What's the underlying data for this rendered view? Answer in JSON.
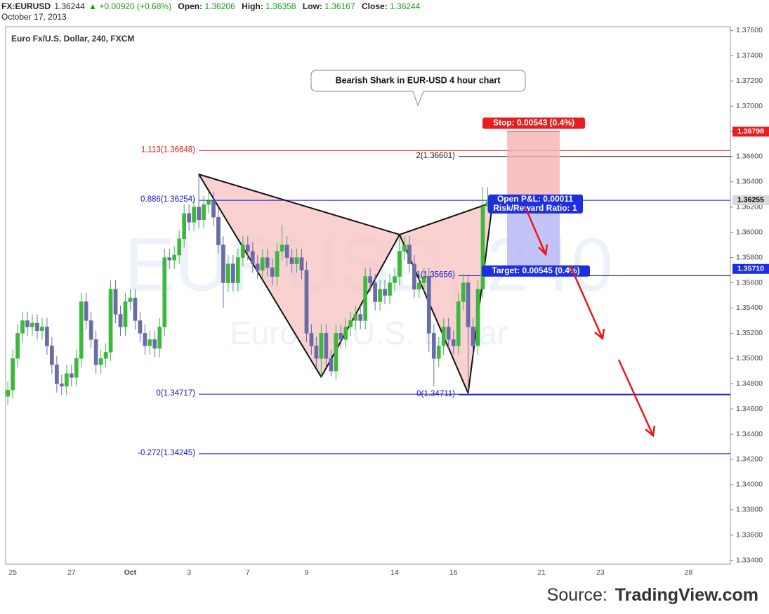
{
  "header": {
    "symbol": "FX:EURUSD",
    "last": "1.36244",
    "arrow": "▲",
    "change": "+0.00920 (+0.68%)",
    "fields": [
      {
        "label": "Open:",
        "value": "1.36206"
      },
      {
        "label": "High:",
        "value": "1.36358"
      },
      {
        "label": "Low:",
        "value": "1.36167"
      },
      {
        "label": "Close:",
        "value": "1.36244"
      }
    ],
    "date": "October 17, 2013"
  },
  "source": {
    "prefix": "Source:",
    "name": "TradingView.com"
  },
  "chart_data": {
    "type": "candlestick",
    "title": "Euro Fx/U.S. Dollar, 240, FXCM",
    "watermark": "EURUSD, 240",
    "watermark_subtitle": "Euro Fx/U.S. Dollar",
    "annotation": "Bearish Shark in EUR-USD 4 hour chart",
    "categories": [
      null,
      "25",
      null,
      null,
      null,
      null,
      null,
      null,
      null,
      null,
      null,
      null,
      null,
      "27",
      null,
      null,
      null,
      null,
      null,
      null,
      null,
      null,
      null,
      null,
      null,
      "Oct",
      null,
      null,
      null,
      null,
      null,
      null,
      null,
      null,
      null,
      null,
      null,
      "3",
      null,
      null,
      null,
      null,
      null,
      null,
      null,
      null,
      null,
      null,
      null,
      "7",
      null,
      null,
      null,
      null,
      null,
      null,
      null,
      null,
      null,
      null,
      null,
      "9",
      null,
      null,
      null,
      null,
      null,
      null,
      null,
      null,
      null,
      null,
      null,
      null,
      null,
      null,
      null,
      null,
      null,
      "14",
      null,
      null,
      null,
      null,
      null,
      null,
      null,
      null,
      null,
      null,
      null,
      "16",
      null,
      null,
      null,
      null,
      null,
      null,
      null,
      null,
      null,
      null,
      null,
      null,
      null,
      null,
      null,
      null,
      null,
      "21",
      null,
      null,
      null,
      null,
      null,
      null,
      null,
      null,
      null,
      null,
      null,
      "23",
      null,
      null,
      null,
      null,
      null,
      null,
      null,
      null,
      null,
      null,
      null,
      null,
      null,
      null,
      null,
      null,
      null,
      "28",
      null,
      null,
      null,
      null,
      null,
      null,
      null,
      null
    ],
    "open": [
      1.347,
      1.3475,
      1.35,
      1.352,
      1.353,
      1.3525,
      1.3528,
      1.3522,
      1.3525,
      1.351,
      1.3495,
      1.348,
      1.3478,
      1.3488,
      1.3485,
      1.35,
      1.3545,
      1.353,
      1.3515,
      1.3495,
      1.35,
      1.3505,
      1.3555,
      1.3535,
      1.3525,
      1.3545,
      1.3548,
      1.353,
      1.352,
      1.351,
      1.3515,
      1.3508,
      1.3525,
      1.358,
      1.3578,
      1.3582,
      1.3595,
      1.3615,
      1.3608,
      1.362,
      1.361,
      1.3622,
      1.3625,
      1.3612,
      1.359,
      1.356,
      1.3575,
      1.356,
      1.358,
      1.359,
      1.3585,
      1.3575,
      1.357,
      1.358,
      1.3572,
      1.3565,
      1.3585,
      1.359,
      1.358,
      1.3575,
      1.358,
      1.357,
      1.352,
      1.351,
      1.35,
      1.352,
      1.35,
      1.349,
      1.352,
      1.3515,
      1.3525,
      1.353,
      1.3535,
      1.353,
      1.3565,
      1.356,
      1.3545,
      1.3555,
      1.355,
      1.356,
      1.3565,
      1.3585,
      1.359,
      1.3575,
      1.3555,
      1.356,
      1.3565,
      1.352,
      1.35,
      1.351,
      1.3525,
      1.3515,
      1.351,
      1.3545,
      1.356,
      1.3525,
      1.351,
      1.3555,
      1.36206,
      null,
      null,
      null,
      null,
      null,
      null,
      null,
      null,
      null,
      null,
      null,
      null,
      null,
      null,
      null,
      null,
      null,
      null,
      null,
      null,
      null,
      null,
      null,
      null,
      null,
      null,
      null,
      null,
      null,
      null,
      null,
      null,
      null,
      null,
      null,
      null,
      null,
      null,
      null,
      null,
      null,
      null,
      null,
      null,
      null,
      null,
      null,
      null,
      null
    ],
    "high": [
      1.3482,
      1.3507,
      1.3527,
      1.3537,
      1.3537,
      1.3535,
      1.3535,
      1.3532,
      1.3532,
      1.3517,
      1.3502,
      1.3487,
      1.3495,
      1.3495,
      1.3507,
      1.3552,
      1.3552,
      1.3537,
      1.3522,
      1.3507,
      1.3512,
      1.3562,
      1.3562,
      1.3542,
      1.3552,
      1.3555,
      1.3555,
      1.3537,
      1.3527,
      1.3522,
      1.3522,
      1.3532,
      1.3587,
      1.3587,
      1.3589,
      1.3602,
      1.3622,
      1.3622,
      1.3627,
      1.3646,
      1.3629,
      1.3632,
      1.3632,
      1.3619,
      1.3597,
      1.3582,
      1.3582,
      1.3587,
      1.3597,
      1.3597,
      1.3592,
      1.3582,
      1.3587,
      1.3587,
      1.3579,
      1.3592,
      1.3606,
      1.3597,
      1.3587,
      1.3587,
      1.3587,
      1.3577,
      1.3527,
      1.3517,
      1.3527,
      1.3527,
      1.3507,
      1.3527,
      1.3527,
      1.3532,
      1.3537,
      1.3542,
      1.3542,
      1.3572,
      1.3572,
      1.3567,
      1.3562,
      1.3562,
      1.3567,
      1.3572,
      1.3597,
      1.3597,
      1.3597,
      1.3582,
      1.3567,
      1.3572,
      1.3572,
      1.3527,
      1.3517,
      1.3532,
      1.3532,
      1.3522,
      1.3552,
      1.3567,
      1.3567,
      1.3532,
      1.3562,
      1.3636,
      1.36358,
      null,
      null,
      null,
      null,
      null,
      null,
      null,
      null,
      null,
      null,
      null,
      null,
      null,
      null,
      null,
      null,
      null,
      null,
      null,
      null,
      null,
      null,
      null,
      null,
      null,
      null,
      null,
      null,
      null,
      null,
      null,
      null,
      null,
      null,
      null,
      null,
      null,
      null,
      null,
      null,
      null,
      null,
      null,
      null,
      null,
      null,
      null,
      null,
      null
    ],
    "low": [
      1.3463,
      1.3468,
      1.3493,
      1.3513,
      1.3518,
      1.3518,
      1.3515,
      1.3515,
      1.3503,
      1.3488,
      1.3473,
      1.3471,
      1.3471,
      1.3478,
      1.3478,
      1.3493,
      1.3523,
      1.3508,
      1.3488,
      1.3488,
      1.3493,
      1.3498,
      1.3528,
      1.3518,
      1.3518,
      1.3538,
      1.3523,
      1.3513,
      1.3503,
      1.3503,
      1.3501,
      1.3501,
      1.3518,
      1.3571,
      1.3571,
      1.3575,
      1.3588,
      1.3601,
      1.3601,
      1.3603,
      1.3603,
      1.3615,
      1.3605,
      1.3583,
      1.354,
      1.3553,
      1.3553,
      1.3553,
      1.3573,
      1.3578,
      1.3568,
      1.3563,
      1.3563,
      1.3565,
      1.3558,
      1.3558,
      1.3578,
      1.3573,
      1.3568,
      1.3568,
      1.3563,
      1.3513,
      1.3503,
      1.3493,
      1.3485,
      1.3493,
      1.3486,
      1.3483,
      1.3508,
      1.3508,
      1.3518,
      1.3523,
      1.3523,
      1.3523,
      1.3553,
      1.3538,
      1.3538,
      1.3543,
      1.3543,
      1.3553,
      1.3558,
      1.3578,
      1.3568,
      1.3548,
      1.3548,
      1.3553,
      1.3505,
      1.3478,
      1.3493,
      1.3503,
      1.3508,
      1.3503,
      1.3503,
      1.3538,
      1.3472,
      1.3503,
      1.3503,
      1.3548,
      1.36167,
      null,
      null,
      null,
      null,
      null,
      null,
      null,
      null,
      null,
      null,
      null,
      null,
      null,
      null,
      null,
      null,
      null,
      null,
      null,
      null,
      null,
      null,
      null,
      null,
      null,
      null,
      null,
      null,
      null,
      null,
      null,
      null,
      null,
      null,
      null,
      null,
      null,
      null,
      null,
      null,
      null,
      null,
      null,
      null,
      null,
      null,
      null,
      null,
      null
    ],
    "close": [
      1.3475,
      1.35,
      1.352,
      1.353,
      1.3525,
      1.3528,
      1.3522,
      1.3525,
      1.351,
      1.3495,
      1.348,
      1.3478,
      1.3488,
      1.3485,
      1.35,
      1.3545,
      1.353,
      1.3515,
      1.3495,
      1.35,
      1.3505,
      1.3555,
      1.3535,
      1.3525,
      1.3545,
      1.3548,
      1.353,
      1.352,
      1.351,
      1.3515,
      1.3508,
      1.3525,
      1.358,
      1.3578,
      1.3582,
      1.3595,
      1.3615,
      1.3608,
      1.362,
      1.361,
      1.3622,
      1.3625,
      1.3612,
      1.359,
      1.356,
      1.3575,
      1.356,
      1.358,
      1.359,
      1.3585,
      1.3575,
      1.357,
      1.358,
      1.3572,
      1.3565,
      1.3585,
      1.359,
      1.358,
      1.3575,
      1.358,
      1.357,
      1.352,
      1.351,
      1.35,
      1.352,
      1.35,
      1.349,
      1.352,
      1.3515,
      1.3525,
      1.353,
      1.3535,
      1.353,
      1.3565,
      1.356,
      1.3545,
      1.3555,
      1.355,
      1.356,
      1.3565,
      1.3585,
      1.359,
      1.3575,
      1.3555,
      1.356,
      1.3565,
      1.352,
      1.35,
      1.351,
      1.3525,
      1.3515,
      1.351,
      1.3545,
      1.356,
      1.3525,
      1.351,
      1.3555,
      1.362,
      1.36244,
      null,
      null,
      null,
      null,
      null,
      null,
      null,
      null,
      null,
      null,
      null,
      null,
      null,
      null,
      null,
      null,
      null,
      null,
      null,
      null,
      null,
      null,
      null,
      null,
      null,
      null,
      null,
      null,
      null,
      null,
      null,
      null,
      null,
      null,
      null,
      null,
      null,
      null,
      null,
      null,
      null,
      null,
      null,
      null,
      null,
      null,
      null,
      null,
      null
    ],
    "up_color": "#3cb83c",
    "down_color": "#6a6caa",
    "ylim": [
      1.3337,
      1.3763
    ],
    "yticks": [
      {
        "value": 1.334,
        "label": "1.33400"
      },
      {
        "value": 1.336,
        "label": "1.33600"
      },
      {
        "value": 1.338,
        "label": "1.33800"
      },
      {
        "value": 1.34,
        "label": "1.34000"
      },
      {
        "value": 1.342,
        "label": "1.34200"
      },
      {
        "value": 1.344,
        "label": "1.34400"
      },
      {
        "value": 1.346,
        "label": "1.34600"
      },
      {
        "value": 1.348,
        "label": "1.34800"
      },
      {
        "value": 1.35,
        "label": "1.35000"
      },
      {
        "value": 1.352,
        "label": "1.35200"
      },
      {
        "value": 1.354,
        "label": "1.35400"
      },
      {
        "value": 1.356,
        "label": "1.35600"
      },
      {
        "value": 1.358,
        "label": "1.35800"
      },
      {
        "value": 1.36,
        "label": "1.36000"
      },
      {
        "value": 1.362,
        "label": "1.36200"
      },
      {
        "value": 1.364,
        "label": "1.36400"
      },
      {
        "value": 1.366,
        "label": "1.36600"
      },
      {
        "value": 1.368,
        "label": "1.36800"
      },
      {
        "value": 1.37,
        "label": "1.37000"
      },
      {
        "value": 1.372,
        "label": "1.37200"
      },
      {
        "value": 1.374,
        "label": "1.37400"
      },
      {
        "value": 1.376,
        "label": "1.37600"
      }
    ],
    "price_labels": [
      {
        "value": 1.36798,
        "label": "1.36798",
        "color": "#e81e1e",
        "text_color": "#ffffff"
      },
      {
        "value": 1.36255,
        "label": "1.36255",
        "color": "#d8d8d8",
        "text_color": "#000000"
      },
      {
        "value": 1.3571,
        "label": "1.35710",
        "color": "#1d2fe0",
        "text_color": "#ffffff"
      }
    ],
    "fib_levels": [
      {
        "label": "1.113(1.36648)",
        "value": 1.36648,
        "color": "#e02020"
      },
      {
        "label": "2(1.36601)",
        "value": 1.36601,
        "color": "#1a1a1a"
      },
      {
        "label": "0.886(1.36254)",
        "value": 1.36254,
        "color": "#1515c8"
      },
      {
        "label": "1(1.35656)",
        "value": 1.35656,
        "color": "#1515c8"
      },
      {
        "label": "0(1.34717)",
        "value": 1.34717,
        "color": "#1515c8"
      },
      {
        "label": "0(1.34711)",
        "value": 1.34711,
        "color": "#1515c8"
      },
      {
        "label": "-0.272(1.34245)",
        "value": 1.34245,
        "color": "#1515c8"
      }
    ],
    "pattern": {
      "x": [
        39,
        64,
        80,
        94,
        99
      ],
      "y": [
        1.3646,
        1.34853,
        1.35982,
        1.34725,
        1.36238
      ],
      "color": "#f7c2c2"
    },
    "position": {
      "entry": 1.36255,
      "stop": 1.36798,
      "target": 1.3571,
      "stop_label": "Stop: 0.00543 (0.4%)",
      "pnl_label": "Open P&L: 0.00011",
      "ratio_label": "Risk/Reward Ratio: 1",
      "target_label": "Target: 0.00545 (0.4%)"
    }
  }
}
